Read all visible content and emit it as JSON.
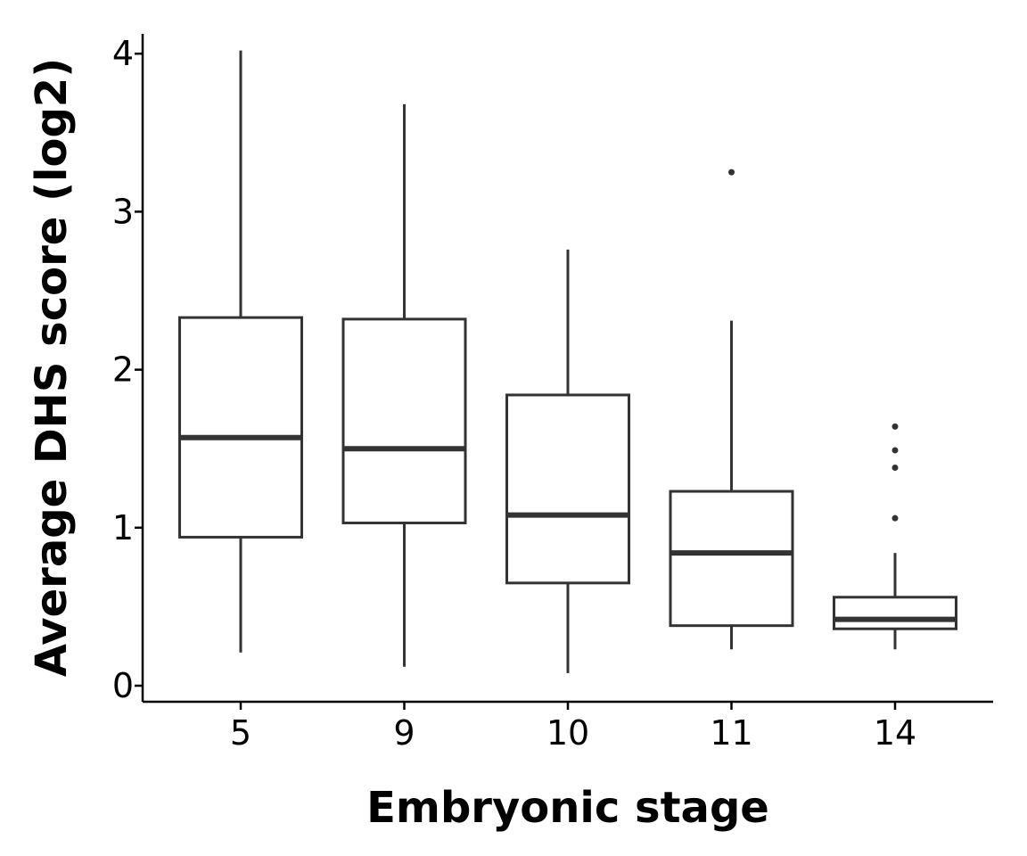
{
  "chart_data": {
    "type": "box",
    "title": "",
    "xlabel": "Embryonic stage",
    "ylabel": "Average DHS score (log2)",
    "categories": [
      "5",
      "9",
      "10",
      "11",
      "14"
    ],
    "ylim": [
      -0.1,
      4.12
    ],
    "yticks": [
      0,
      1,
      2,
      3,
      4
    ],
    "grid": false,
    "legend": "none",
    "boxes": [
      {
        "category": "5",
        "whisker_low": 0.21,
        "q1": 0.94,
        "median": 1.57,
        "q3": 2.33,
        "whisker_high": 4.02,
        "outliers": []
      },
      {
        "category": "9",
        "whisker_low": 0.12,
        "q1": 1.03,
        "median": 1.5,
        "q3": 2.32,
        "whisker_high": 3.68,
        "outliers": []
      },
      {
        "category": "10",
        "whisker_low": 0.08,
        "q1": 0.65,
        "median": 1.08,
        "q3": 1.84,
        "whisker_high": 2.76,
        "outliers": []
      },
      {
        "category": "11",
        "whisker_low": 0.23,
        "q1": 0.38,
        "median": 0.84,
        "q3": 1.23,
        "whisker_high": 2.31,
        "outliers": [
          3.25
        ]
      },
      {
        "category": "14",
        "whisker_low": 0.23,
        "q1": 0.36,
        "median": 0.42,
        "q3": 0.56,
        "whisker_high": 0.84,
        "outliers": [
          1.06,
          1.38,
          1.49,
          1.64
        ]
      }
    ],
    "colors": {
      "box_stroke": "#333333",
      "box_fill": "#ffffff",
      "axis": "#000000"
    }
  }
}
